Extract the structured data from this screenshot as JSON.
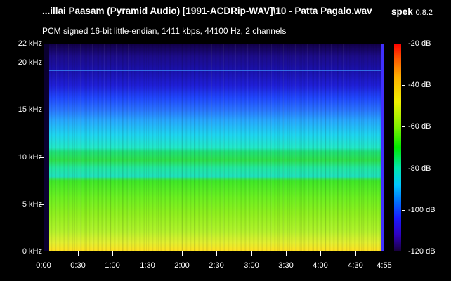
{
  "header": {
    "title": "...illai Paasam (Pyramid Audio) [1991-ACDRip-WAV]\\10 - Patta Pagalo.wav",
    "app_name": "spek",
    "app_version": "0.8.2",
    "info": "PCM signed 16-bit little-endian, 1411 kbps, 44100 Hz, 2 channels"
  },
  "frequency_axis": {
    "labels": [
      "22 kHz",
      "20 kHz",
      "15 kHz",
      "10 kHz",
      "5 kHz",
      "0 kHz"
    ]
  },
  "time_axis": {
    "labels": [
      "0:00",
      "0:30",
      "1:00",
      "1:30",
      "2:00",
      "2:30",
      "3:00",
      "3:30",
      "4:00",
      "4:30",
      "4:55"
    ]
  },
  "colorbar": {
    "labels": [
      "-20 dB",
      "-40 dB",
      "-60 dB",
      "-80 dB",
      "-100 dB",
      "-120 dB"
    ]
  },
  "colors": {
    "background": "#000000",
    "text": "#ffffff"
  }
}
